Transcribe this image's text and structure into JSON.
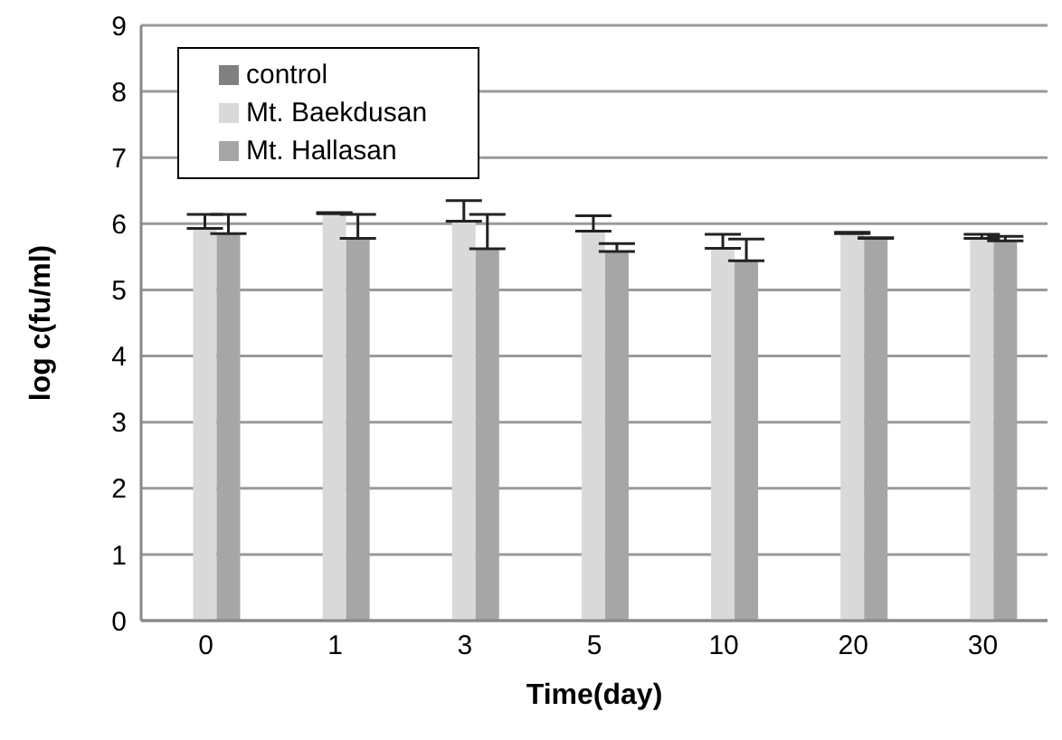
{
  "chart_data": {
    "type": "bar",
    "categories": [
      "0",
      "1",
      "3",
      "5",
      "10",
      "20",
      "30"
    ],
    "series": [
      {
        "name": "control",
        "color": "#808080",
        "values": [
          null,
          null,
          null,
          null,
          null,
          null,
          null
        ]
      },
      {
        "name": "Mt. Baekdusan",
        "color": "#d9d9d9",
        "values": [
          5.93,
          6.15,
          6.04,
          5.89,
          5.63,
          5.85,
          5.78
        ],
        "errors": [
          0.21,
          0.02,
          0.31,
          0.23,
          0.21,
          0.02,
          0.06
        ]
      },
      {
        "name": "Mt. Hallasan",
        "color": "#a6a6a6",
        "values": [
          5.85,
          5.78,
          5.62,
          5.58,
          5.44,
          5.78,
          5.74
        ],
        "errors": [
          0.29,
          0.36,
          0.52,
          0.12,
          0.33,
          0.01,
          0.07
        ]
      }
    ],
    "xlabel": "Time(day)",
    "ylabel": "log c(fu/ml)",
    "ylim": [
      0,
      9
    ],
    "yticks": [
      0,
      1,
      2,
      3,
      4,
      5,
      6,
      7,
      8,
      9
    ],
    "grid": "y",
    "legend": "top left"
  }
}
